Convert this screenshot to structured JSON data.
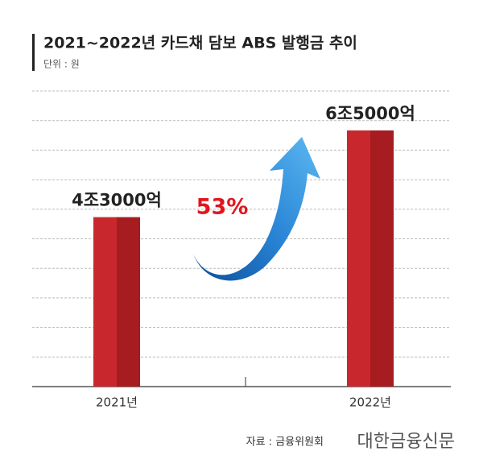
{
  "chart_data": {
    "type": "bar",
    "title": "2021~2022년 카드채 담보 ABS 발행금 추이",
    "subtitle": "단위 : 원",
    "categories": [
      "2021년",
      "2022년"
    ],
    "values": [
      4300000000000,
      6500000000000
    ],
    "value_labels": [
      "4조3000억",
      "6조5000억"
    ],
    "color": "#c0262b",
    "ylim": [
      0,
      7500000000000
    ],
    "yticks": [
      0,
      750000000000,
      1500000000000,
      2250000000000,
      3000000000000,
      3750000000000,
      4500000000000,
      5250000000000,
      6000000000000,
      6750000000000,
      7500000000000
    ],
    "grid": true,
    "annotation": "53%",
    "source": "자료 : 금융위원회",
    "publisher": "대한금융신문"
  }
}
